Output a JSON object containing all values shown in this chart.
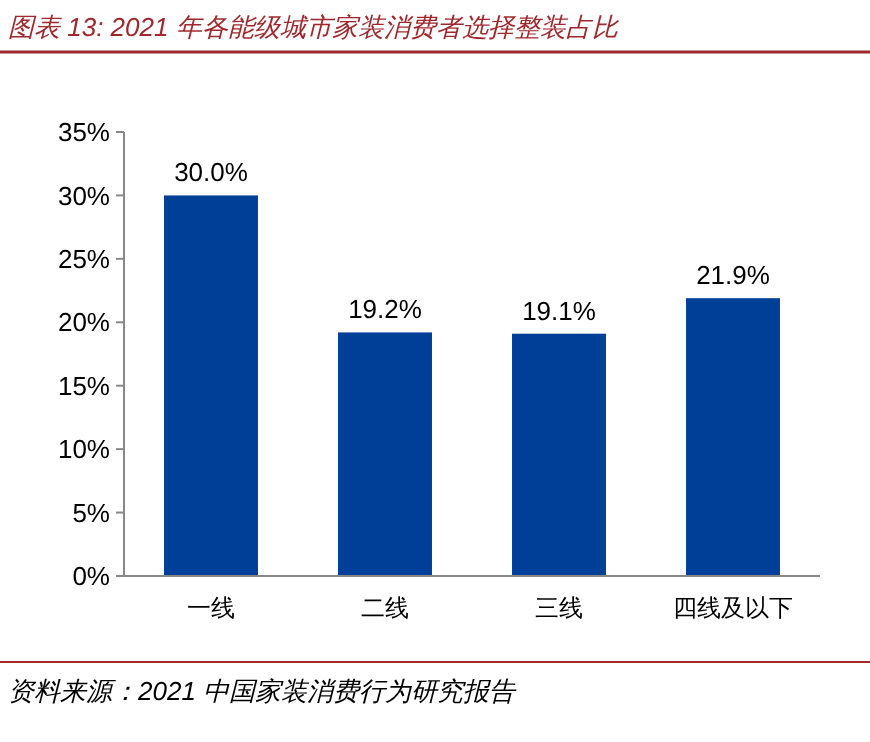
{
  "chart_data": {
    "type": "bar",
    "title": "图表 13:  2021 年各能级城市家装消费者选择整装占比",
    "categories": [
      "一线",
      "二线",
      "三线",
      "四线及以下"
    ],
    "values": [
      30.0,
      19.2,
      19.1,
      21.9
    ],
    "color": "#003f98",
    "value_labels": [
      "30.0%",
      "19.2%",
      "19.1%",
      "21.9%"
    ],
    "ylim": [
      0,
      35
    ],
    "yticks": [
      {
        "value": 0,
        "label": "0%"
      },
      {
        "value": 5,
        "label": "5%"
      },
      {
        "value": 10,
        "label": "10%"
      },
      {
        "value": 15,
        "label": "15%"
      },
      {
        "value": 20,
        "label": "20%"
      },
      {
        "value": 25,
        "label": "25%"
      },
      {
        "value": 30,
        "label": "30%"
      },
      {
        "value": 35,
        "label": "35%"
      }
    ],
    "grid": false,
    "annotations": [
      "资料来源：2021 中国家装消费行为研究报告"
    ]
  }
}
